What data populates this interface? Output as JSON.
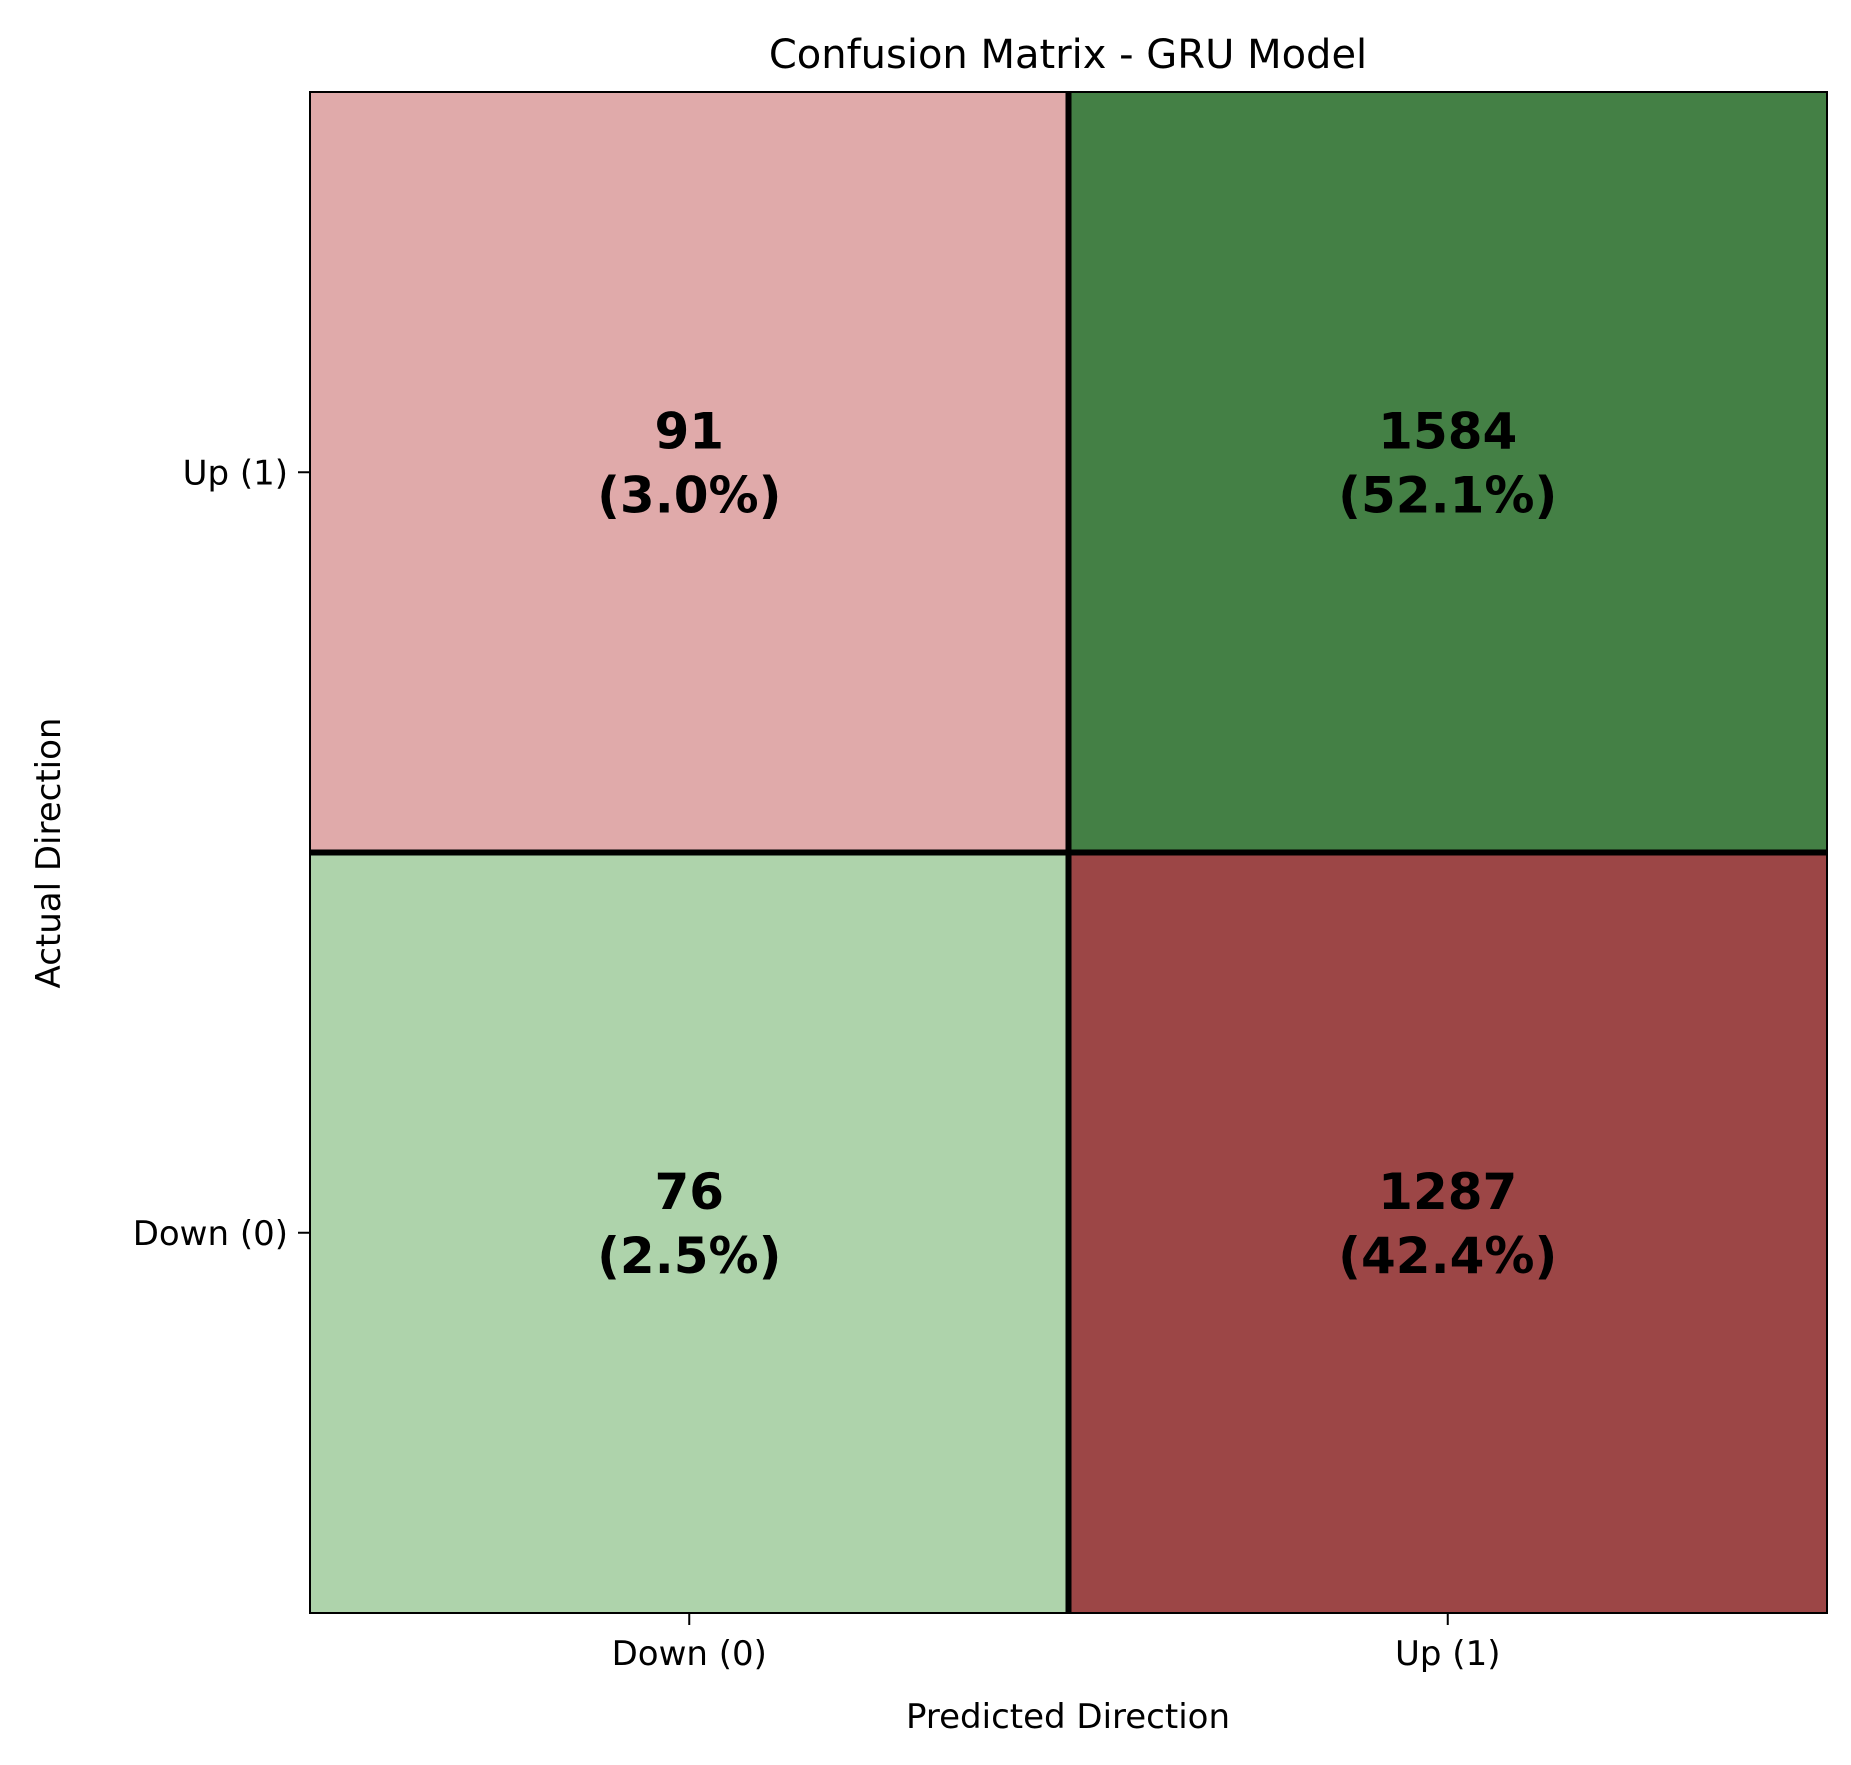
{
  "chart_data": {
    "type": "heatmap",
    "title": "Confusion Matrix - GRU Model",
    "xlabel": "Predicted Direction",
    "ylabel": "Actual Direction",
    "x_categories": [
      "Down (0)",
      "Up (1)"
    ],
    "y_categories_top_to_bottom": [
      "Up (1)",
      "Down (0)"
    ],
    "cells": [
      {
        "row": "Up (1)",
        "col": "Down (0)",
        "count": "91",
        "percent": "(3.0%)",
        "color": "#e0aaaa"
      },
      {
        "row": "Up (1)",
        "col": "Up (1)",
        "count": "1584",
        "percent": "(52.1%)",
        "color": "#448045"
      },
      {
        "row": "Down (0)",
        "col": "Down (0)",
        "count": "76",
        "percent": "(2.5%)",
        "color": "#aed3ab"
      },
      {
        "row": "Down (0)",
        "col": "Up (1)",
        "count": "1287",
        "percent": "(42.4%)",
        "color": "#9c4646"
      }
    ]
  }
}
